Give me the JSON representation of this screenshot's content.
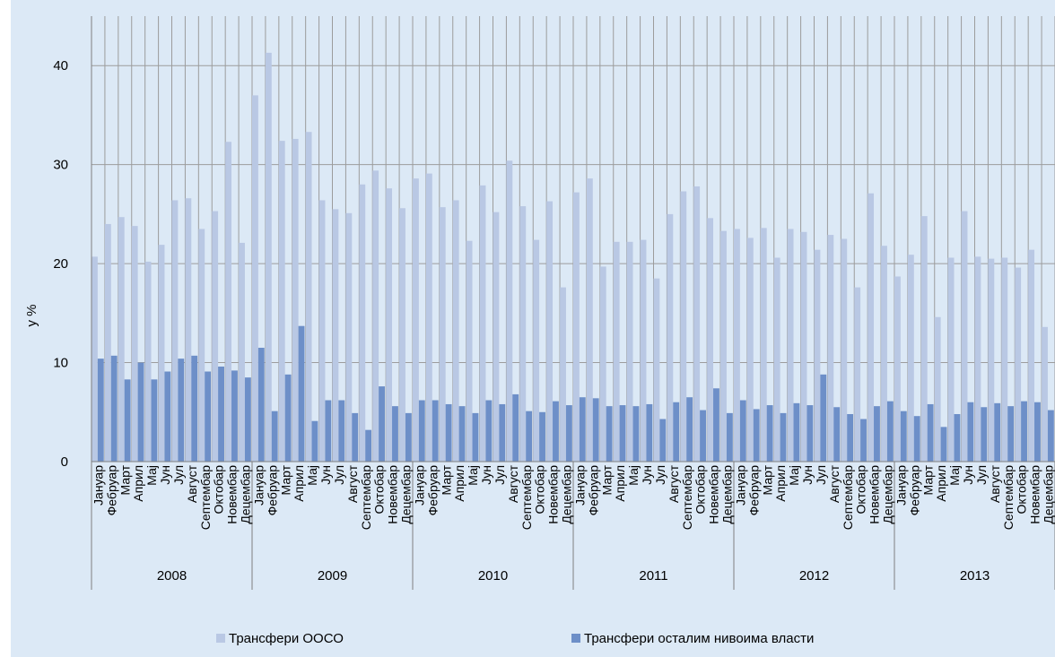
{
  "chart_data": {
    "type": "bar",
    "ylabel": "у %",
    "ylim": [
      0,
      45
    ],
    "yticks": [
      0,
      10,
      20,
      30,
      40
    ],
    "grid": true,
    "legend_position": "bottom",
    "month_labels": [
      "Јануар",
      "Фебруар",
      "Март",
      "Април",
      "Мај",
      "Јун",
      "Јул",
      "Август",
      "Септембар",
      "Октобар",
      "Новембар",
      "Децембар"
    ],
    "years": [
      "2008",
      "2009",
      "2010",
      "2011",
      "2012",
      "2013"
    ],
    "series": [
      {
        "name": "Трансфери ООСО",
        "color": "#b9c8e4",
        "values": [
          20.7,
          24.0,
          24.7,
          23.8,
          20.2,
          21.9,
          26.4,
          26.6,
          23.5,
          25.3,
          32.3,
          22.1,
          37.0,
          41.3,
          32.4,
          32.6,
          33.3,
          26.4,
          25.5,
          25.1,
          28.0,
          29.4,
          27.6,
          25.6,
          28.6,
          29.1,
          25.7,
          26.4,
          22.3,
          27.9,
          25.2,
          30.4,
          25.8,
          22.4,
          26.3,
          17.6,
          27.2,
          28.6,
          19.7,
          22.2,
          22.2,
          22.4,
          18.5,
          25.0,
          27.3,
          27.8,
          24.6,
          23.3,
          23.5,
          22.6,
          23.6,
          20.6,
          23.5,
          23.2,
          21.4,
          22.9,
          22.5,
          17.6,
          27.1,
          21.8,
          18.7,
          20.9,
          24.8,
          14.6,
          20.6,
          25.3,
          20.7,
          20.5,
          20.6,
          19.6,
          21.4,
          13.6
        ]
      },
      {
        "name": "Трансфери осталим нивоима власти",
        "color": "#6d8fc8",
        "values": [
          10.4,
          10.7,
          8.3,
          10.0,
          8.3,
          9.1,
          10.4,
          10.7,
          9.1,
          9.6,
          9.2,
          8.5,
          11.5,
          5.1,
          8.8,
          13.7,
          4.1,
          6.2,
          6.2,
          4.9,
          3.2,
          7.6,
          5.6,
          4.9,
          6.2,
          6.2,
          5.8,
          5.6,
          4.9,
          6.2,
          5.8,
          6.8,
          5.1,
          5.0,
          6.1,
          5.7,
          6.5,
          6.4,
          5.6,
          5.7,
          5.6,
          5.8,
          4.3,
          6.0,
          6.5,
          5.2,
          7.4,
          4.9,
          6.2,
          5.3,
          5.7,
          4.9,
          5.9,
          5.7,
          8.8,
          5.5,
          4.8,
          4.3,
          5.6,
          6.1,
          5.1,
          4.6,
          5.8,
          3.5,
          4.8,
          6.0,
          5.5,
          5.9,
          5.6,
          6.1,
          6.0,
          5.2
        ]
      }
    ]
  }
}
